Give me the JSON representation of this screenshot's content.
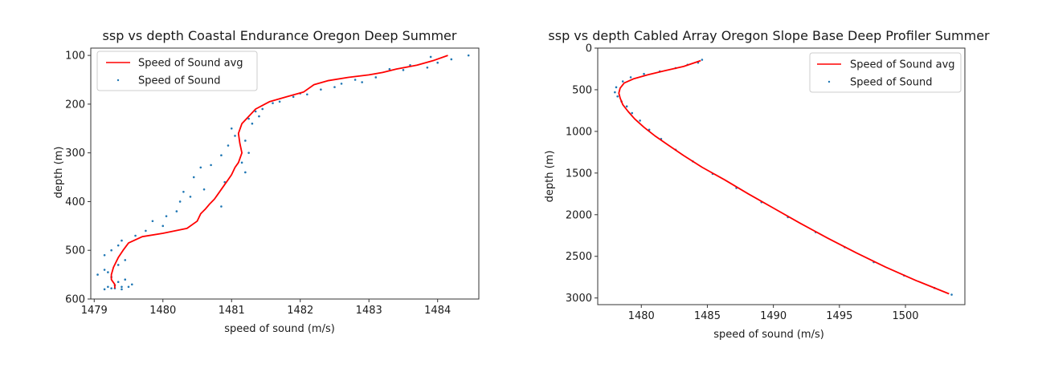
{
  "chart_data": [
    {
      "type": "scatter",
      "title": "ssp vs depth Coastal Endurance Oregon Deep Summer",
      "xlabel": "speed of sound (m/s)",
      "ylabel": "depth (m)",
      "xlim": [
        1478.95,
        1484.6
      ],
      "ylim": [
        600,
        85
      ],
      "y_inverted": true,
      "xticks": [
        1479,
        1480,
        1481,
        1482,
        1483,
        1484
      ],
      "yticks": [
        100,
        200,
        300,
        400,
        500,
        600
      ],
      "grid": false,
      "legend_position": "upper-left",
      "series": [
        {
          "name": "Speed of Sound avg",
          "kind": "line",
          "color": "#ff0000",
          "x": [
            1484.15,
            1483.95,
            1483.7,
            1483.4,
            1483.2,
            1483.0,
            1482.7,
            1482.4,
            1482.2,
            1482.05,
            1481.8,
            1481.55,
            1481.35,
            1481.15,
            1481.1,
            1481.12,
            1481.15,
            1481.1,
            1481.05,
            1481.0,
            1480.95,
            1480.9,
            1480.85,
            1480.8,
            1480.75,
            1480.68,
            1480.62,
            1480.55,
            1480.5,
            1480.35,
            1480.0,
            1479.7,
            1479.5,
            1479.42,
            1479.35,
            1479.28,
            1479.25,
            1479.25,
            1479.3,
            1479.3
          ],
          "y": [
            100,
            110,
            120,
            128,
            135,
            140,
            145,
            152,
            160,
            175,
            185,
            195,
            210,
            240,
            260,
            280,
            300,
            320,
            330,
            345,
            355,
            365,
            375,
            385,
            395,
            405,
            415,
            425,
            440,
            455,
            465,
            472,
            485,
            500,
            515,
            535,
            550,
            560,
            570,
            578
          ]
        },
        {
          "name": "Speed of Sound",
          "kind": "scatter",
          "color": "#1f77b4",
          "x": [
            1484.45,
            1484.2,
            1484.0,
            1483.9,
            1483.6,
            1483.85,
            1483.5,
            1483.3,
            1483.1,
            1482.9,
            1482.8,
            1482.6,
            1482.5,
            1482.3,
            1482.1,
            1482.0,
            1481.9,
            1481.7,
            1481.6,
            1481.45,
            1481.35,
            1481.4,
            1481.25,
            1481.3,
            1481.0,
            1481.05,
            1481.2,
            1480.95,
            1481.25,
            1480.85,
            1481.15,
            1480.7,
            1480.55,
            1481.2,
            1480.45,
            1480.9,
            1480.6,
            1480.3,
            1480.4,
            1480.25,
            1480.85,
            1480.2,
            1480.05,
            1479.85,
            1480.0,
            1479.75,
            1479.6,
            1479.4,
            1479.35,
            1479.25,
            1479.15,
            1479.45,
            1479.35,
            1479.15,
            1479.2,
            1479.05,
            1479.25,
            1479.45,
            1479.35,
            1479.55,
            1479.2,
            1479.3,
            1479.4,
            1479.25,
            1479.4,
            1479.5,
            1479.3,
            1479.15
          ],
          "y": [
            100,
            108,
            115,
            103,
            120,
            125,
            130,
            128,
            145,
            155,
            150,
            158,
            165,
            170,
            180,
            178,
            185,
            195,
            198,
            210,
            215,
            225,
            230,
            240,
            250,
            265,
            275,
            285,
            300,
            305,
            320,
            325,
            330,
            340,
            350,
            360,
            375,
            380,
            390,
            400,
            410,
            420,
            430,
            440,
            450,
            460,
            470,
            480,
            490,
            500,
            510,
            520,
            530,
            540,
            545,
            550,
            555,
            560,
            565,
            570,
            575,
            578,
            580,
            578,
            575,
            575,
            572,
            580
          ]
        }
      ]
    },
    {
      "type": "scatter",
      "title": "ssp vs depth Cabled Array Oregon Slope Base Deep Profiler Summer",
      "xlabel": "speed of sound (m/s)",
      "ylabel": "depth (m)",
      "xlim": [
        1476.7,
        1504.5
      ],
      "ylim": [
        3080,
        0
      ],
      "y_inverted": true,
      "xticks": [
        1480,
        1485,
        1490,
        1495,
        1500
      ],
      "yticks": [
        0,
        500,
        1000,
        1500,
        2000,
        2500,
        3000
      ],
      "grid": false,
      "legend_position": "upper-right",
      "series": [
        {
          "name": "Speed of Sound avg",
          "kind": "line",
          "color": "#ff0000",
          "x": [
            1484.5,
            1483.2,
            1481.8,
            1480.5,
            1479.4,
            1478.7,
            1478.4,
            1478.3,
            1478.4,
            1478.6,
            1479.0,
            1479.5,
            1480.2,
            1481.0,
            1482.0,
            1483.2,
            1484.6,
            1486.3,
            1488.1,
            1490.0,
            1492.0,
            1494.1,
            1496.3,
            1498.5,
            1500.8,
            1503.3
          ],
          "y": [
            150,
            220,
            270,
            320,
            370,
            420,
            480,
            540,
            600,
            680,
            760,
            850,
            950,
            1050,
            1160,
            1290,
            1430,
            1580,
            1750,
            1920,
            2100,
            2280,
            2460,
            2630,
            2790,
            2950
          ]
        },
        {
          "name": "Speed of Sound",
          "kind": "scatter",
          "color": "#1f77b4",
          "x": [
            1484.6,
            1484.3,
            1483.5,
            1482.6,
            1481.4,
            1480.2,
            1479.2,
            1478.6,
            1478.1,
            1478.0,
            1478.2,
            1478.5,
            1478.9,
            1479.3,
            1479.9,
            1480.6,
            1481.5,
            1482.6,
            1483.9,
            1485.4,
            1487.2,
            1489.1,
            1491.1,
            1493.2,
            1495.4,
            1497.6,
            1499.9,
            1502.2,
            1503.5
          ],
          "y": [
            140,
            175,
            200,
            240,
            280,
            310,
            350,
            400,
            470,
            530,
            580,
            640,
            700,
            780,
            870,
            980,
            1090,
            1220,
            1360,
            1510,
            1680,
            1850,
            2030,
            2210,
            2390,
            2570,
            2730,
            2880,
            2960
          ]
        }
      ]
    }
  ]
}
